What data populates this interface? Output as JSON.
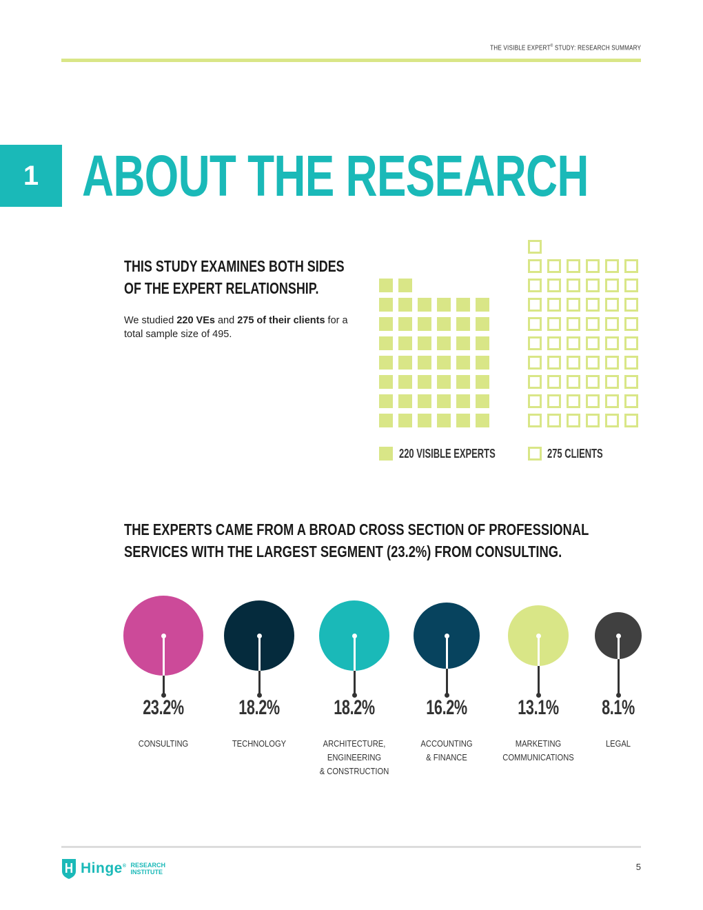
{
  "header": {
    "running_head_a": "THE VISIBLE EXPERT",
    "running_head_mark": "®",
    "running_head_b": " STUDY: RESEARCH SUMMARY"
  },
  "section": {
    "number": "1",
    "title": "ABOUT THE RESEARCH"
  },
  "intro": {
    "heading_line1": "THIS STUDY EXAMINES BOTH SIDES",
    "heading_line2": "OF THE EXPERT RELATIONSHIP.",
    "body_pre": "We studied ",
    "body_bold1": "220 VEs",
    "body_mid": " and ",
    "body_bold2": "275 of their clients",
    "body_post": " for a total sample size of 495."
  },
  "chart_data": [
    {
      "type": "waffle",
      "series": [
        {
          "name": "220 VISIBLE EXPERTS",
          "value": 220,
          "style": "filled"
        },
        {
          "name": "275 CLIENTS",
          "value": 275,
          "style": "outline"
        }
      ],
      "color": "#d9e687"
    },
    {
      "type": "bubble",
      "categories": [
        "CONSULTING",
        "TECHNOLOGY",
        "ARCHITECTURE, ENGINEERING & CONSTRUCTION",
        "ACCOUNTING & FINANCE",
        "MARKETING COMMUNICATIONS",
        "LEGAL"
      ],
      "values": [
        23.2,
        18.2,
        18.2,
        16.2,
        13.1,
        8.1
      ]
    }
  ],
  "waffle_legend": {
    "experts_label": "220 VISIBLE EXPERTS",
    "clients_label": "275 CLIENTS"
  },
  "segments_heading": {
    "line1": "THE EXPERTS CAME FROM A BROAD CROSS SECTION OF PROFESSIONAL",
    "line2": "SERVICES WITH THE LARGEST SEGMENT (23.2%) FROM CONSULTING."
  },
  "segments": [
    {
      "pct": "23.2%",
      "value": 23.2,
      "label_lines": [
        "CONSULTING"
      ],
      "color": "#cc4a99"
    },
    {
      "pct": "18.2%",
      "value": 18.2,
      "label_lines": [
        "TECHNOLOGY"
      ],
      "color": "#052b3d"
    },
    {
      "pct": "18.2%",
      "value": 18.2,
      "label_lines": [
        "ARCHITECTURE,",
        "ENGINEERING",
        "& CONSTRUCTION"
      ],
      "color": "#1ab9b8"
    },
    {
      "pct": "16.2%",
      "value": 16.2,
      "label_lines": [
        "ACCOUNTING",
        "& FINANCE"
      ],
      "color": "#07435e"
    },
    {
      "pct": "13.1%",
      "value": 13.1,
      "label_lines": [
        "MARKETING",
        "COMMUNICATIONS"
      ],
      "color": "#d9e687"
    },
    {
      "pct": "8.1%",
      "value": 8.1,
      "label_lines": [
        "LEGAL"
      ],
      "color": "#404040"
    }
  ],
  "footer": {
    "logo_word": "Hinge",
    "logo_mark": "®",
    "logo_sub1": "RESEARCH",
    "logo_sub2": "INSTITUTE",
    "page_number": "5"
  },
  "colors": {
    "accent_teal": "#1ab9b8",
    "accent_lime": "#d9e687"
  }
}
